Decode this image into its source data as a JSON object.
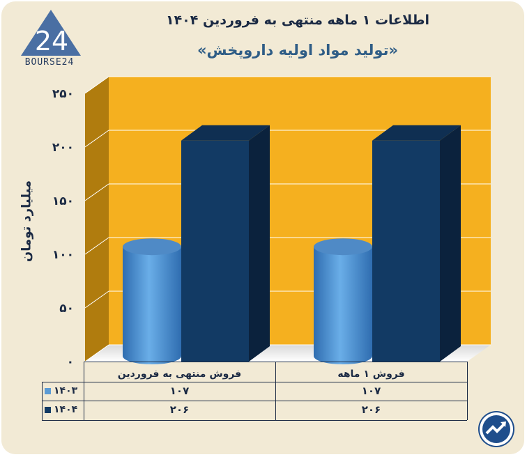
{
  "logo": {
    "text": "BOURSE24"
  },
  "title": "اطلاعات ۱ ماهه منتهی به فروردین ۱۴۰۴",
  "subtitle": "«تولید مواد اولیه داروپخش»",
  "chart_data": {
    "type": "bar",
    "title": "اطلاعات ۱ ماهه منتهی به فروردین ۱۴۰۴",
    "subtitle": "«تولید مواد اولیه داروپخش»",
    "ylabel": "میلیارد تومان",
    "ylim": [
      0,
      250
    ],
    "yticks": [
      "۰",
      "۵۰",
      "۱۰۰",
      "۱۵۰",
      "۲۰۰",
      "۲۵۰"
    ],
    "ytick_values": [
      0,
      50,
      100,
      150,
      200,
      250
    ],
    "categories": [
      "فروش منتهی به  فروردین",
      "فروش ۱  ماهه"
    ],
    "series": [
      {
        "name": "۱۴۰۳",
        "values": [
          107,
          107
        ],
        "labels": [
          "۱۰۷",
          "۱۰۷"
        ],
        "color": "#5b9bd5",
        "shape": "cylinder"
      },
      {
        "name": "۱۴۰۴",
        "values": [
          206,
          206
        ],
        "labels": [
          "۲۰۶",
          "۲۰۶"
        ],
        "color": "#123a64",
        "shape": "box"
      }
    ],
    "background_color": "#f5b01f",
    "grid": true,
    "legend": "bottom-left data table"
  }
}
